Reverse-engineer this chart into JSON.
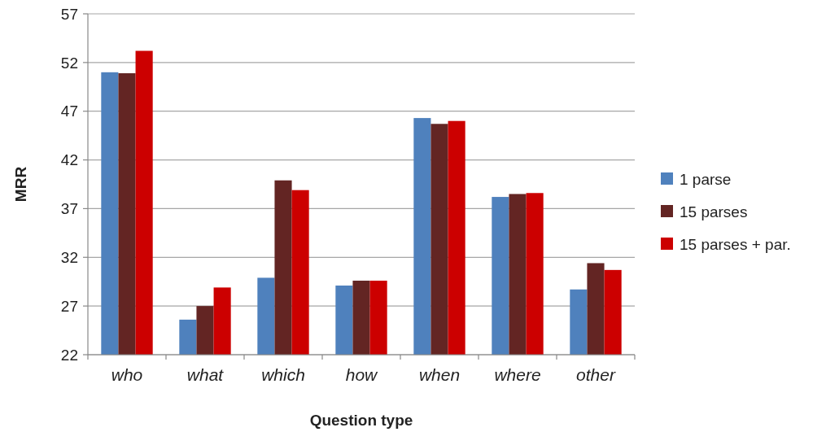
{
  "chart_data": {
    "type": "bar",
    "xlabel": "Question type",
    "ylabel": "MRR",
    "categories": [
      "who",
      "what",
      "which",
      "how",
      "when",
      "where",
      "other"
    ],
    "series": [
      {
        "name": "1 parse",
        "color": "#4f81bd",
        "values": [
          51.0,
          25.6,
          29.9,
          29.1,
          46.3,
          38.2,
          28.7
        ]
      },
      {
        "name": "15 parses",
        "color": "#632523",
        "values": [
          50.9,
          27.0,
          39.9,
          29.6,
          45.7,
          38.5,
          31.4
        ]
      },
      {
        "name": "15 parses + par.",
        "color": "#cc0000",
        "values": [
          53.2,
          28.9,
          38.9,
          29.6,
          46.0,
          38.6,
          30.7
        ]
      }
    ],
    "ylim": [
      22,
      57
    ],
    "yticks": [
      22,
      27,
      32,
      37,
      42,
      47,
      52,
      57
    ],
    "grid": "y",
    "legend": "right"
  }
}
